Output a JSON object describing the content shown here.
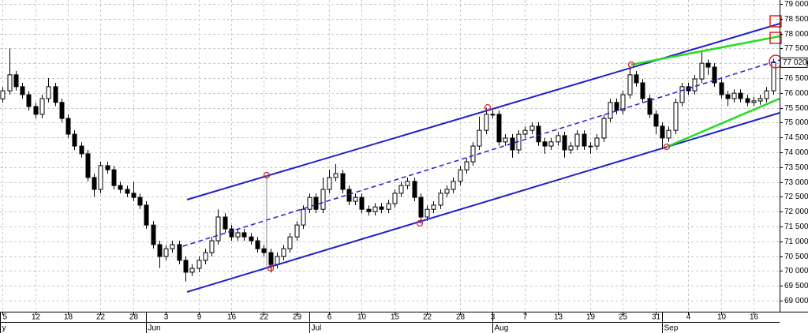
{
  "chart_data": {
    "type": "candlestick",
    "open": [
      75800,
      76070,
      76610,
      76210,
      75940,
      75540,
      75280,
      75810,
      76210,
      75680,
      75140,
      74610,
      74210,
      73950,
      73150,
      72750,
      73550,
      73410,
      72880,
      72750,
      72620,
      72480,
      72220,
      71550,
      70890,
      70490,
      70750,
      70890,
      70360,
      69960,
      70090,
      70360,
      70620,
      71020,
      71820,
      71420,
      71150,
      71290,
      71150,
      71020,
      70750,
      70620,
      70220,
      70490,
      70750,
      71150,
      71550,
      72080,
      72480,
      72080,
      72750,
      73150,
      73280,
      72750,
      72350,
      72480,
      72080,
      72000,
      72160,
      72080,
      72270,
      72620,
      72880,
      73020,
      72480,
      71820,
      72080,
      72220,
      72620,
      72750,
      73020,
      73410,
      73680,
      74210,
      74740,
      75280,
      75280,
      74350,
      74480,
      74080,
      74610,
      74740,
      74880,
      74350,
      74210,
      74350,
      74560,
      74080,
      74210,
      74610,
      74210,
      74210,
      74480,
      75140,
      75680,
      75410,
      75940,
      76610,
      76340,
      75810,
      75280,
      74880,
      74480,
      74740,
      75680,
      76210,
      76070,
      76470,
      77000,
      76870,
      76340,
      75940,
      75810,
      75990,
      75810,
      75680,
      75730,
      75810,
      76070
    ],
    "high": [
      76200,
      77500,
      76740,
      76340,
      76070,
      75670,
      75940,
      76500,
      76340,
      75810,
      75270,
      74740,
      74340,
      74080,
      73280,
      73680,
      73680,
      73540,
      73010,
      72880,
      73000,
      72610,
      72350,
      71680,
      71020,
      70880,
      71020,
      71020,
      70490,
      70220,
      70490,
      70750,
      71150,
      72080,
      71950,
      71550,
      71420,
      71420,
      71280,
      71150,
      70880,
      70750,
      70620,
      70880,
      71280,
      71680,
      72210,
      72610,
      72610,
      73150,
      73410,
      73600,
      73410,
      72880,
      72610,
      72610,
      72210,
      72290,
      72290,
      72400,
      72750,
      73010,
      73150,
      73150,
      72610,
      72210,
      72350,
      72750,
      72880,
      73150,
      73540,
      73810,
      74340,
      75200,
      75500,
      75410,
      75410,
      74610,
      74610,
      74740,
      74870,
      75010,
      75010,
      74480,
      74480,
      74690,
      74690,
      74340,
      74740,
      74740,
      74340,
      74610,
      75270,
      75810,
      75810,
      76070,
      76900,
      76740,
      76470,
      75940,
      75410,
      75010,
      74870,
      75810,
      76340,
      76340,
      76600,
      77400,
      77130,
      77000,
      76470,
      76070,
      76120,
      76120,
      75940,
      75860,
      75940,
      76200,
      77150
    ],
    "low": [
      75670,
      75940,
      76080,
      75810,
      75410,
      75150,
      75150,
      75680,
      75550,
      75010,
      74480,
      74080,
      73820,
      73020,
      72500,
      72620,
      73280,
      72750,
      72620,
      72490,
      72350,
      72090,
      71420,
      70760,
      70100,
      70360,
      70620,
      70230,
      69650,
      69830,
      69960,
      70230,
      70490,
      70890,
      71290,
      71020,
      71020,
      71020,
      70890,
      70620,
      70490,
      69950,
      70090,
      70360,
      70620,
      71020,
      71420,
      71950,
      71950,
      71950,
      72620,
      73020,
      72620,
      72220,
      72220,
      71950,
      71870,
      71870,
      71950,
      71950,
      72140,
      72490,
      72750,
      72350,
      71600,
      71690,
      71950,
      72090,
      72490,
      72620,
      72890,
      73280,
      73550,
      74080,
      74610,
      75150,
      74220,
      74220,
      73820,
      73950,
      74480,
      74610,
      74220,
      73950,
      74080,
      74220,
      73820,
      73950,
      74080,
      74080,
      73950,
      74080,
      74350,
      75010,
      75280,
      75280,
      75810,
      76210,
      75680,
      75150,
      74610,
      74100,
      74350,
      74610,
      75550,
      75940,
      75940,
      76340,
      76610,
      76210,
      75810,
      75550,
      75680,
      75680,
      75550,
      75550,
      75600,
      75680,
      75940
    ],
    "close": [
      76070,
      76610,
      76210,
      75940,
      75540,
      75280,
      75810,
      76210,
      75680,
      75140,
      74610,
      74210,
      73950,
      73150,
      72750,
      73550,
      73410,
      72880,
      72750,
      72620,
      72480,
      72220,
      71550,
      70890,
      70490,
      70750,
      70890,
      70360,
      69960,
      70090,
      70360,
      70620,
      71020,
      71820,
      71420,
      71150,
      71290,
      71150,
      71020,
      70750,
      70620,
      70220,
      70490,
      70750,
      71150,
      71550,
      72080,
      72480,
      72080,
      72750,
      73150,
      73280,
      72750,
      72350,
      72480,
      72080,
      72000,
      72160,
      72080,
      72270,
      72620,
      72880,
      73020,
      72480,
      71820,
      72080,
      72220,
      72620,
      72750,
      73020,
      73410,
      73680,
      74210,
      74740,
      75280,
      75280,
      74350,
      74480,
      74080,
      74610,
      74740,
      74880,
      74350,
      74210,
      74350,
      74560,
      74080,
      74210,
      74610,
      74210,
      74210,
      74480,
      75140,
      75680,
      75410,
      75940,
      76610,
      76340,
      75810,
      75280,
      74880,
      74480,
      74740,
      75680,
      76210,
      76070,
      76470,
      77000,
      76870,
      76340,
      75940,
      75810,
      75990,
      75810,
      75680,
      75730,
      75810,
      76070,
      77020
    ],
    "up_color": "#ffffff",
    "down_color": "#000000",
    "grid": true,
    "xlim": [
      -0.4,
      119
    ],
    "xticks": [
      {
        "value": 0,
        "label": "5"
      },
      {
        "value": 5,
        "label": "12"
      },
      {
        "value": 10,
        "label": "18"
      },
      {
        "value": 15,
        "label": "22"
      },
      {
        "value": 20,
        "label": "28"
      },
      {
        "value": 25,
        "label": "3"
      },
      {
        "value": 30,
        "label": "9"
      },
      {
        "value": 35,
        "label": "16"
      },
      {
        "value": 40,
        "label": "22"
      },
      {
        "value": 45,
        "label": "29"
      },
      {
        "value": 50,
        "label": "6"
      },
      {
        "value": 55,
        "label": "10"
      },
      {
        "value": 60,
        "label": "15"
      },
      {
        "value": 65,
        "label": "22"
      },
      {
        "value": 70,
        "label": "28"
      },
      {
        "value": 75,
        "label": "3"
      },
      {
        "value": 80,
        "label": "7"
      },
      {
        "value": 85,
        "label": "13"
      },
      {
        "value": 90,
        "label": "19"
      },
      {
        "value": 95,
        "label": "25"
      },
      {
        "value": 100,
        "label": "31"
      },
      {
        "value": 105,
        "label": "4"
      },
      {
        "value": 110,
        "label": "10"
      },
      {
        "value": 115,
        "label": "16"
      }
    ],
    "months": [
      {
        "value": -0.4,
        "label": "y"
      },
      {
        "value": 22,
        "label": "Jun"
      },
      {
        "value": 47,
        "label": "Jul"
      },
      {
        "value": 75,
        "label": "Aug"
      },
      {
        "value": 101,
        "label": "Sep"
      }
    ],
    "ylim": [
      68630,
      79130
    ],
    "yticks": [
      {
        "value": 69000,
        "label": "69 000"
      },
      {
        "value": 69500,
        "label": "69 500"
      },
      {
        "value": 70000,
        "label": "70 000"
      },
      {
        "value": 70500,
        "label": "70 500"
      },
      {
        "value": 71000,
        "label": "71 000"
      },
      {
        "value": 71500,
        "label": "71 500"
      },
      {
        "value": 72000,
        "label": "72 000"
      },
      {
        "value": 72500,
        "label": "72 500"
      },
      {
        "value": 73000,
        "label": "73 000"
      },
      {
        "value": 73500,
        "label": "73 500"
      },
      {
        "value": 74000,
        "label": "74 000"
      },
      {
        "value": 74500,
        "label": "74 500"
      },
      {
        "value": 75000,
        "label": "75 000"
      },
      {
        "value": 75500,
        "label": "75 500"
      },
      {
        "value": 76000,
        "label": "76 000"
      },
      {
        "value": 76500,
        "label": "76 500"
      },
      {
        "value": 77000,
        "label": "77 000"
      },
      {
        "value": 77500,
        "label": "77 500"
      },
      {
        "value": 78000,
        "label": "78 000"
      },
      {
        "value": 78500,
        "label": "78 500"
      },
      {
        "value": 79000,
        "label": "79 000"
      }
    ],
    "last_price": 77020,
    "last_price_label": "77 020"
  }
}
